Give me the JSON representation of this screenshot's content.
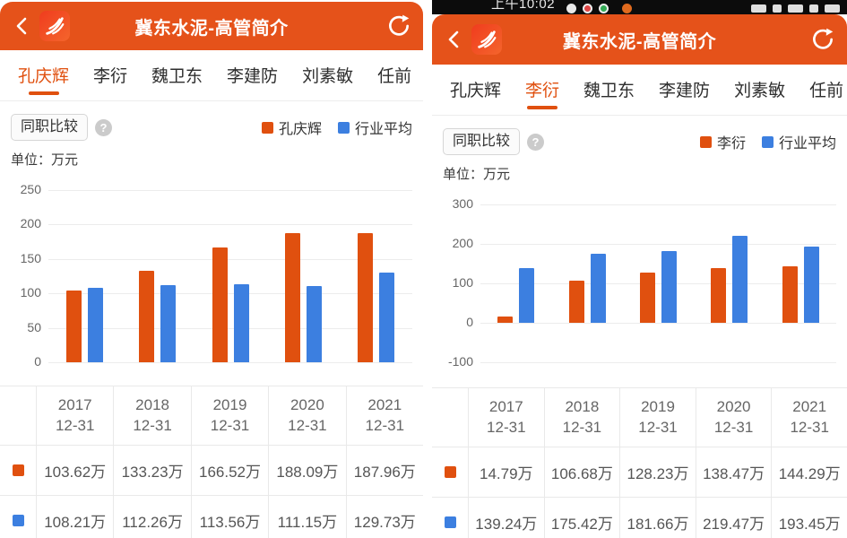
{
  "page": {
    "background": "#ffffff"
  },
  "colors": {
    "header_orange": "#e5521a",
    "accent_orange": "#e0500f",
    "bar_blue": "#3c7fe0"
  },
  "icons": {
    "help": "?"
  },
  "panels": [
    {
      "header": {
        "title": "冀东水泥-高管简介"
      },
      "tabs": {
        "items": [
          "孔庆辉",
          "李衍",
          "魏卫东",
          "李建防",
          "刘素敏",
          "任前"
        ],
        "active_index": 0
      },
      "toolbar": {
        "compare_button": "同职比较"
      },
      "unit_label": "单位：万元",
      "chart_data": {
        "type": "bar",
        "categories": [
          "2017-12-31",
          "2018-12-31",
          "2019-12-31",
          "2020-12-31",
          "2021-12-31"
        ],
        "series": [
          {
            "name": "孔庆辉",
            "color": "#e0500f",
            "values": [
              103.62,
              133.23,
              166.52,
              188.09,
              187.96
            ]
          },
          {
            "name": "行业平均",
            "color": "#3c7fe0",
            "values": [
              108.21,
              112.26,
              113.56,
              111.15,
              129.73
            ]
          }
        ],
        "ylabel": "万元",
        "ylim": [
          0,
          250
        ],
        "yticks": [
          250,
          200,
          150,
          100,
          50,
          0
        ],
        "grid": true,
        "legend_position": "top-right"
      },
      "table": {
        "columns": [
          [
            "2017",
            "12-31"
          ],
          [
            "2018",
            "12-31"
          ],
          [
            "2019",
            "12-31"
          ],
          [
            "2020",
            "12-31"
          ],
          [
            "2021",
            "12-31"
          ]
        ],
        "rows": [
          {
            "color": "#e0500f",
            "cells": [
              "103.62万",
              "133.23万",
              "166.52万",
              "188.09万",
              "187.96万"
            ]
          },
          {
            "color": "#3c7fe0",
            "cells": [
              "108.21万",
              "112.26万",
              "113.56万",
              "111.15万",
              "129.73万"
            ]
          }
        ]
      }
    },
    {
      "status_bar": {
        "time": "上午10:02"
      },
      "header": {
        "title": "冀东水泥-高管简介"
      },
      "tabs": {
        "items": [
          "孔庆辉",
          "李衍",
          "魏卫东",
          "李建防",
          "刘素敏",
          "任前"
        ],
        "active_index": 1
      },
      "toolbar": {
        "compare_button": "同职比较"
      },
      "unit_label": "单位：万元",
      "chart_data": {
        "type": "bar",
        "categories": [
          "2017-12-31",
          "2018-12-31",
          "2019-12-31",
          "2020-12-31",
          "2021-12-31"
        ],
        "series": [
          {
            "name": "李衍",
            "color": "#e0500f",
            "values": [
              14.79,
              106.68,
              128.23,
              138.47,
              144.29
            ]
          },
          {
            "name": "行业平均",
            "color": "#3c7fe0",
            "values": [
              139.24,
              175.42,
              181.66,
              219.47,
              193.45
            ]
          }
        ],
        "ylabel": "万元",
        "ylim": [
          -100,
          300
        ],
        "yticks": [
          300,
          200,
          100,
          0,
          -100
        ],
        "grid": true,
        "legend_position": "top-right"
      },
      "table": {
        "columns": [
          [
            "2017",
            "12-31"
          ],
          [
            "2018",
            "12-31"
          ],
          [
            "2019",
            "12-31"
          ],
          [
            "2020",
            "12-31"
          ],
          [
            "2021",
            "12-31"
          ]
        ],
        "rows": [
          {
            "color": "#e0500f",
            "cells": [
              "14.79万",
              "106.68万",
              "128.23万",
              "138.47万",
              "144.29万"
            ]
          },
          {
            "color": "#3c7fe0",
            "cells": [
              "139.24万",
              "175.42万",
              "181.66万",
              "219.47万",
              "193.45万"
            ]
          }
        ]
      }
    }
  ]
}
